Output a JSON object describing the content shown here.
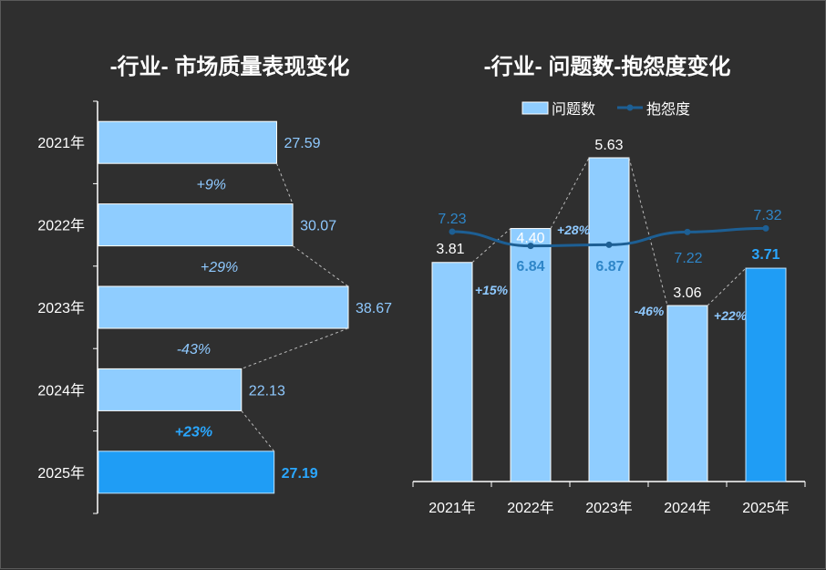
{
  "colors": {
    "bar": "#8fcdff",
    "bar_highlight": "#1f9df5",
    "line": "#1d5f94",
    "background": "#2f2f2f",
    "text": "#ffffff"
  },
  "chart_data": [
    {
      "type": "bar",
      "orientation": "horizontal",
      "title": "-行业-  市场质量表现变化",
      "categories": [
        "2021年",
        "2022年",
        "2023年",
        "2024年",
        "2025年"
      ],
      "values": [
        27.59,
        30.07,
        38.67,
        22.13,
        27.19
      ],
      "value_labels": [
        "27.59",
        "30.07",
        "38.67",
        "22.13",
        "27.19"
      ],
      "changes": [
        "+9%",
        "+29%",
        "-43%",
        "+23%"
      ],
      "highlight_index": 4,
      "xlim": [
        0,
        45
      ],
      "grid": false
    },
    {
      "type": "bar",
      "title": "-行业- 问题数-抱怨度变化",
      "legend": {
        "position": "top",
        "items": [
          "问题数",
          "抱怨度"
        ]
      },
      "categories": [
        "2021年",
        "2022年",
        "2023年",
        "2024年",
        "2025年"
      ],
      "series": [
        {
          "name": "问题数",
          "type": "bar",
          "values": [
            3.81,
            4.4,
            5.63,
            3.06,
            3.71
          ],
          "value_labels": [
            "3.81",
            "4.40",
            "5.63",
            "3.06",
            "3.71"
          ]
        },
        {
          "name": "抱怨度",
          "type": "line",
          "values": [
            7.23,
            6.84,
            6.87,
            7.22,
            7.32
          ],
          "value_labels": [
            "7.23",
            "6.84",
            "6.87",
            "7.22",
            "7.32"
          ]
        }
      ],
      "changes": [
        "+15%",
        "+28%",
        "-46%",
        "+22%"
      ],
      "highlight_index": 4,
      "ylim": [
        0,
        6
      ],
      "grid": false
    }
  ]
}
